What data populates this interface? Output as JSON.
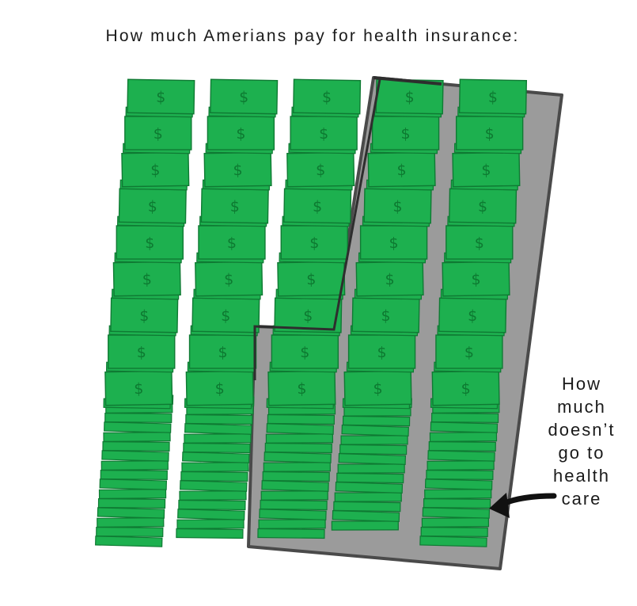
{
  "title": "How much Amerians pay for health insurance:",
  "bill_symbol": "$",
  "annotation": {
    "lines": [
      "How",
      "much",
      "doesn’t",
      "go to",
      "health",
      "care"
    ]
  },
  "colors": {
    "bill_fill": "#1db04f",
    "bill_edge": "#0f7a33",
    "symbol": "#0d7a31",
    "overlay_fill": "#9b9b9b",
    "overlay_edge": "#4a4a4a",
    "text": "#1a1a1a"
  }
}
